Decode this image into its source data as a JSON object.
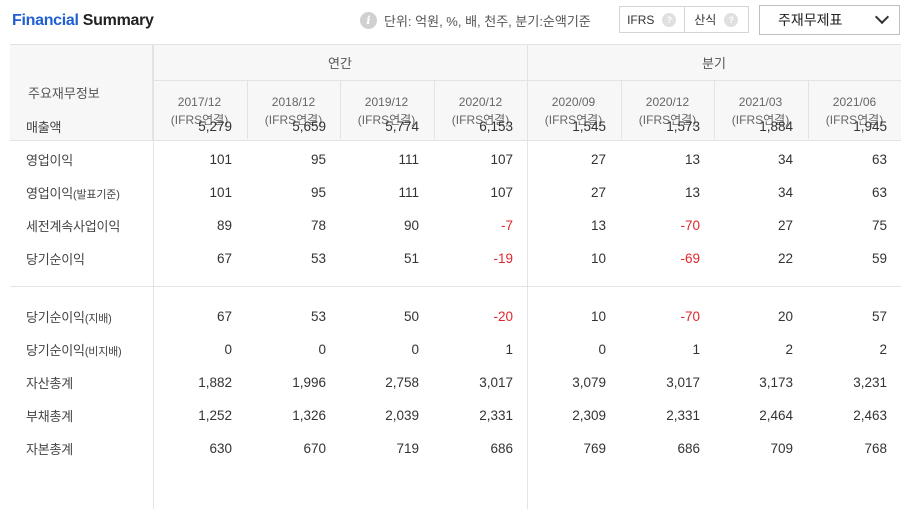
{
  "header": {
    "title_part1": "Financial",
    "title_part2": " Summary",
    "unit_text": "단위: 억원, %, 배, 천주, 분기:순액기준",
    "ifrs_label": "IFRS",
    "calc_label": "산식",
    "select_value": "주재무제표"
  },
  "table": {
    "row_header": "주요재무정보",
    "group_annual": "연간",
    "group_quarter": "분기",
    "columns": [
      {
        "period": "2017/12",
        "basis": "(IFRS연결)"
      },
      {
        "period": "2018/12",
        "basis": "(IFRS연결)"
      },
      {
        "period": "2019/12",
        "basis": "(IFRS연결)"
      },
      {
        "period": "2020/12",
        "basis": "(IFRS연결)"
      },
      {
        "period": "2020/09",
        "basis": "(IFRS연결)"
      },
      {
        "period": "2020/12",
        "basis": "(IFRS연결)"
      },
      {
        "period": "2021/03",
        "basis": "(IFRS연결)"
      },
      {
        "period": "2021/06",
        "basis": "(IFRS연결)"
      }
    ],
    "rows": [
      {
        "label": "매출액",
        "values": [
          "5,279",
          "5,659",
          "5,774",
          "6,153",
          "1,545",
          "1,573",
          "1,884",
          "1,945"
        ]
      },
      {
        "label": "영업이익",
        "values": [
          "101",
          "95",
          "111",
          "107",
          "27",
          "13",
          "34",
          "63"
        ]
      },
      {
        "label": "영업이익",
        "sub": "(발표기준)",
        "values": [
          "101",
          "95",
          "111",
          "107",
          "27",
          "13",
          "34",
          "63"
        ]
      },
      {
        "label": "세전계속사업이익",
        "values": [
          "89",
          "78",
          "90",
          "-7",
          "13",
          "-70",
          "27",
          "75"
        ]
      },
      {
        "label": "당기순이익",
        "values": [
          "67",
          "53",
          "51",
          "-19",
          "10",
          "-69",
          "22",
          "59"
        ]
      },
      {
        "label": "당기순이익",
        "sub": "(지배)",
        "values": [
          "67",
          "53",
          "50",
          "-20",
          "10",
          "-70",
          "20",
          "57"
        ]
      },
      {
        "label": "당기순이익",
        "sub": "(비지배)",
        "values": [
          "0",
          "0",
          "0",
          "1",
          "0",
          "1",
          "2",
          "2"
        ]
      },
      {
        "label": "자산총계",
        "values": [
          "1,882",
          "1,996",
          "2,758",
          "3,017",
          "3,079",
          "3,017",
          "3,173",
          "3,231"
        ]
      },
      {
        "label": "부채총계",
        "values": [
          "1,252",
          "1,326",
          "2,039",
          "2,331",
          "2,309",
          "2,331",
          "2,464",
          "2,463"
        ]
      },
      {
        "label": "자본총계",
        "values": [
          "630",
          "670",
          "719",
          "686",
          "769",
          "686",
          "709",
          "768"
        ]
      }
    ]
  }
}
